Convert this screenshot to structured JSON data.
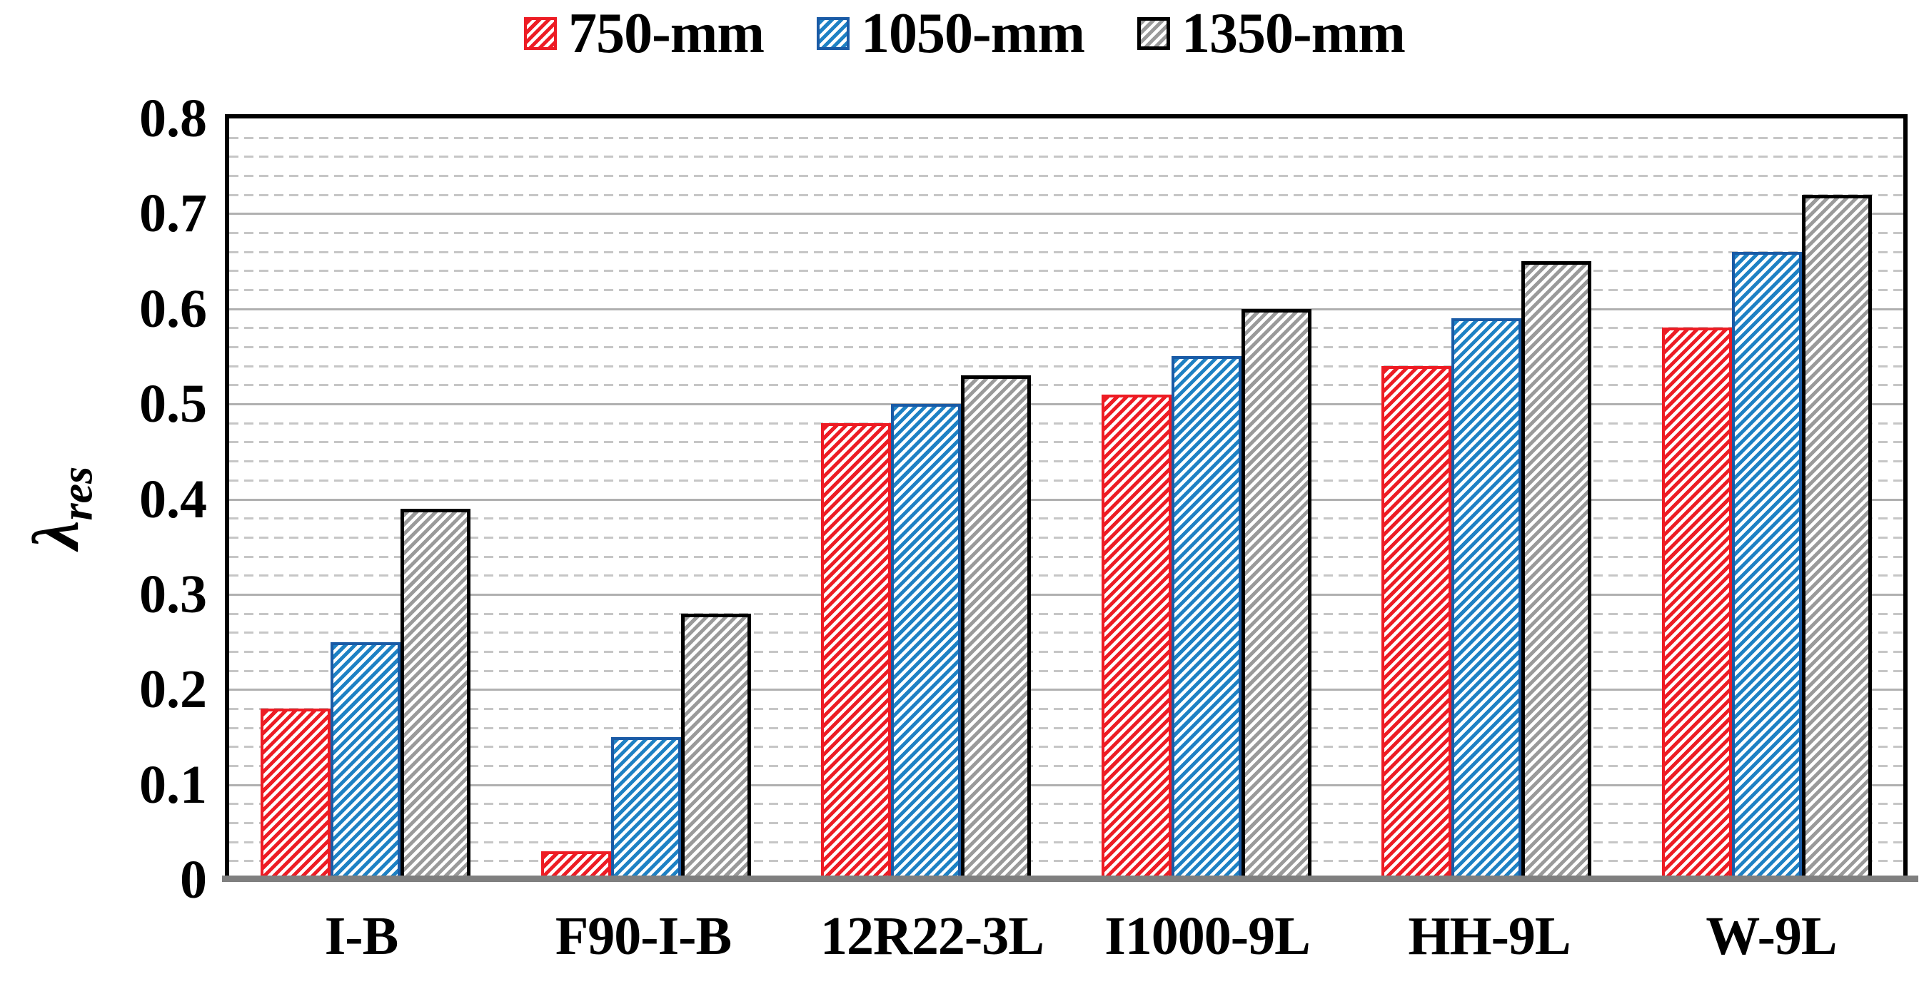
{
  "chart_data": {
    "type": "bar",
    "title": "",
    "categories": [
      "I-B",
      "F90-I-B",
      "12R22-3L",
      "I1000-9L",
      "HH-9L",
      "W-9L"
    ],
    "series": [
      {
        "name": "750-mm",
        "values": [
          0.18,
          0.03,
          0.48,
          0.51,
          0.54,
          0.58
        ],
        "stripe_color": "#ed1c24",
        "border_color": "#ed1c24"
      },
      {
        "name": "1050-mm",
        "values": [
          0.25,
          0.15,
          0.5,
          0.55,
          0.59,
          0.66
        ],
        "stripe_color": "#1e81c4",
        "border_color": "#1a5ba6"
      },
      {
        "name": "1350-mm",
        "values": [
          0.39,
          0.28,
          0.53,
          0.6,
          0.65,
          0.72
        ],
        "stripe_color": "#9a9a9a",
        "border_color": "#000000"
      }
    ],
    "xlabel": "",
    "ylabel_symbol": "λ",
    "ylabel_subscript": "res",
    "ylim": [
      0,
      0.8
    ],
    "y_major_step": 0.1,
    "y_minor_step": 0.02,
    "yticks": [
      "0",
      "0.1",
      "0.2",
      "0.3",
      "0.4",
      "0.5",
      "0.6",
      "0.7",
      "0.8"
    ],
    "legend_position": "top-center",
    "grid": "major-solid-minor-dashed",
    "hatch_pattern": "diagonal-forward",
    "colors": {
      "frame": "#000000",
      "baseline": "#7f7f7f",
      "major_grid": "#b0b0b0",
      "minor_grid": "#c6c6c6",
      "background": "#ffffff"
    }
  }
}
